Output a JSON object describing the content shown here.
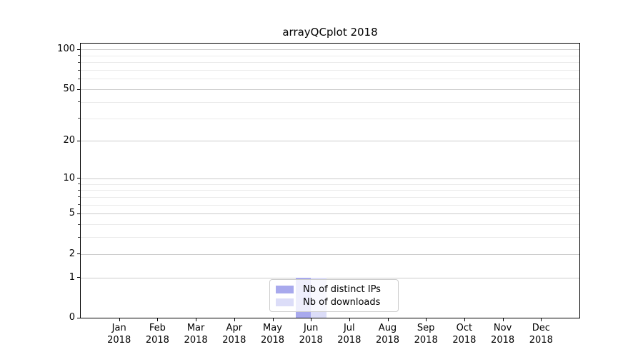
{
  "chart_data": {
    "type": "bar",
    "title": "arrayQCplot 2018",
    "x_categories": [
      "Jan",
      "Feb",
      "Mar",
      "Apr",
      "May",
      "Jun",
      "Jul",
      "Aug",
      "Sep",
      "Oct",
      "Nov",
      "Dec"
    ],
    "x_year": "2018",
    "series": [
      {
        "name": "Nb of distinct IPs",
        "color": "#a8a9ed",
        "values": [
          0,
          0,
          0,
          0,
          0,
          1,
          0,
          0,
          0,
          0,
          0,
          0
        ]
      },
      {
        "name": "Nb of downloads",
        "color": "#dcddf8",
        "values": [
          0,
          0,
          0,
          0,
          0,
          1,
          0,
          0,
          0,
          0,
          0,
          0
        ]
      }
    ],
    "y_scale": "log1p",
    "y_axis_ticks": [
      0,
      1,
      2,
      5,
      10,
      20,
      50,
      100
    ],
    "y_minor_ticks": [
      3,
      4,
      6,
      7,
      8,
      9,
      30,
      40,
      60,
      70,
      80,
      90
    ],
    "ylim": [
      0,
      111
    ],
    "xlabel": "",
    "ylabel": "",
    "grid": true,
    "legend": {
      "position": "lower center",
      "entries": [
        "Nb of distinct IPs",
        "Nb of downloads"
      ]
    }
  }
}
